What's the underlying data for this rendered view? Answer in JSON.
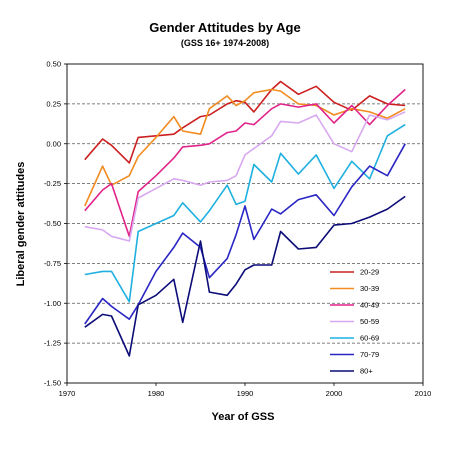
{
  "chart_data": {
    "type": "line",
    "title": "Gender Attitudes by Age",
    "subtitle": "(GSS 16+ 1974-2008)",
    "xlabel": "Year of GSS",
    "ylabel": "Liberal gender attitudes",
    "xlim": [
      1970,
      2010
    ],
    "ylim": [
      -1.5,
      0.5
    ],
    "xticks": [
      "1970",
      "1980",
      "1990",
      "2000",
      "2010"
    ],
    "yticks": [
      "-1.50",
      "-1.25",
      "-1.00",
      "-0.75",
      "-0.50",
      "-0.25",
      "0.00",
      "0.25",
      "0.50"
    ],
    "grid": "dashed horizontal",
    "legend_position": "right",
    "series": [
      {
        "name": "20-29",
        "color": "#cc1f1f",
        "x": [
          1972,
          1974,
          1975,
          1977,
          1978,
          1980,
          1982,
          1983,
          1985,
          1986,
          1988,
          1989,
          1990,
          1991,
          1993,
          1994,
          1996,
          1998,
          2000,
          2002,
          2004,
          2006,
          2008
        ],
        "y": [
          -0.1,
          0.03,
          -0.01,
          -0.12,
          0.04,
          0.05,
          0.06,
          0.1,
          0.17,
          0.18,
          0.25,
          0.27,
          0.26,
          0.2,
          0.34,
          0.39,
          0.31,
          0.36,
          0.26,
          0.21,
          0.3,
          0.25,
          0.24
        ]
      },
      {
        "name": "30-39",
        "color": "#f28b20",
        "x": [
          1972,
          1974,
          1975,
          1977,
          1978,
          1980,
          1982,
          1983,
          1985,
          1986,
          1988,
          1989,
          1990,
          1991,
          1993,
          1994,
          1996,
          1998,
          2000,
          2002,
          2004,
          2006,
          2008
        ],
        "y": [
          -0.39,
          -0.14,
          -0.26,
          -0.2,
          -0.08,
          0.04,
          0.17,
          0.08,
          0.06,
          0.22,
          0.3,
          0.24,
          0.27,
          0.32,
          0.34,
          0.33,
          0.25,
          0.24,
          0.18,
          0.22,
          0.2,
          0.16,
          0.22
        ]
      },
      {
        "name": "40-49",
        "color": "#e0248a",
        "x": [
          1972,
          1974,
          1975,
          1977,
          1978,
          1980,
          1982,
          1983,
          1985,
          1986,
          1988,
          1989,
          1990,
          1991,
          1993,
          1994,
          1996,
          1998,
          2000,
          2002,
          2004,
          2006,
          2008
        ],
        "y": [
          -0.42,
          -0.29,
          -0.25,
          -0.58,
          -0.3,
          -0.2,
          -0.09,
          -0.02,
          -0.01,
          0.0,
          0.07,
          0.08,
          0.13,
          0.12,
          0.22,
          0.25,
          0.23,
          0.25,
          0.13,
          0.24,
          0.12,
          0.24,
          0.34
        ]
      },
      {
        "name": "50-59",
        "color": "#d8a8f0",
        "x": [
          1972,
          1974,
          1975,
          1977,
          1978,
          1980,
          1982,
          1983,
          1985,
          1986,
          1988,
          1989,
          1990,
          1991,
          1993,
          1994,
          1996,
          1998,
          2000,
          2002,
          2004,
          2006,
          2008
        ],
        "y": [
          -0.52,
          -0.54,
          -0.58,
          -0.61,
          -0.34,
          -0.28,
          -0.22,
          -0.23,
          -0.26,
          -0.24,
          -0.23,
          -0.2,
          -0.07,
          -0.03,
          0.05,
          0.14,
          0.13,
          0.18,
          0.0,
          -0.05,
          0.18,
          0.15,
          0.2
        ]
      },
      {
        "name": "60-69",
        "color": "#1fb0e0",
        "x": [
          1972,
          1974,
          1975,
          1977,
          1978,
          1980,
          1982,
          1983,
          1985,
          1986,
          1988,
          1989,
          1990,
          1991,
          1993,
          1994,
          1996,
          1998,
          2000,
          2002,
          2004,
          2006,
          2008
        ],
        "y": [
          -0.82,
          -0.8,
          -0.8,
          -0.99,
          -0.55,
          -0.5,
          -0.45,
          -0.37,
          -0.49,
          -0.42,
          -0.26,
          -0.38,
          -0.36,
          -0.13,
          -0.24,
          -0.06,
          -0.19,
          -0.07,
          -0.28,
          -0.11,
          -0.22,
          0.05,
          0.12
        ]
      },
      {
        "name": "70-79",
        "color": "#2a26c4",
        "x": [
          1972,
          1974,
          1975,
          1977,
          1978,
          1980,
          1982,
          1983,
          1985,
          1986,
          1988,
          1989,
          1990,
          1991,
          1993,
          1994,
          1996,
          1998,
          2000,
          2002,
          2004,
          2006,
          2008
        ],
        "y": [
          -1.13,
          -0.97,
          -1.02,
          -1.1,
          -1.01,
          -0.8,
          -0.65,
          -0.56,
          -0.65,
          -0.84,
          -0.72,
          -0.57,
          -0.39,
          -0.6,
          -0.41,
          -0.44,
          -0.35,
          -0.32,
          -0.45,
          -0.27,
          -0.14,
          -0.2,
          -0.0
        ]
      },
      {
        "name": "80+",
        "color": "#0c0c78",
        "x": [
          1972,
          1974,
          1975,
          1977,
          1978,
          1980,
          1982,
          1983,
          1985,
          1986,
          1988,
          1989,
          1990,
          1991,
          1993,
          1994,
          1996,
          1998,
          2000,
          2002,
          2004,
          2006,
          2008
        ],
        "y": [
          -1.15,
          -1.07,
          -1.08,
          -1.33,
          -1.01,
          -0.95,
          -0.85,
          -1.12,
          -0.61,
          -0.93,
          -0.95,
          -0.88,
          -0.79,
          -0.76,
          -0.76,
          -0.55,
          -0.66,
          -0.65,
          -0.51,
          -0.5,
          -0.46,
          -0.41,
          -0.33
        ]
      }
    ]
  }
}
